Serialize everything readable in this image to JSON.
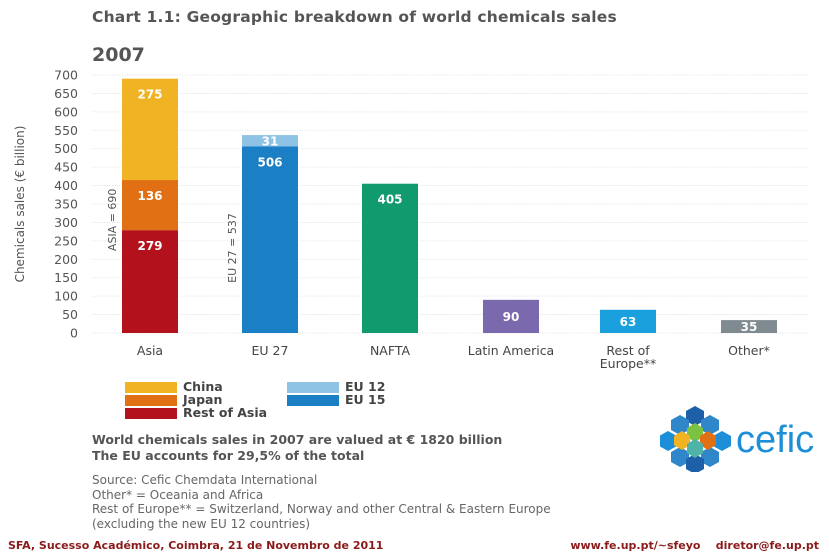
{
  "title": "Chart 1.1: Geographic breakdown of world chemicals sales",
  "year": "2007",
  "chart_data": {
    "type": "bar",
    "stacked": true,
    "ylabel": "Chemicals sales (€ billion)",
    "ylim": [
      0,
      700
    ],
    "yticks": [
      0,
      50,
      100,
      150,
      200,
      250,
      300,
      350,
      400,
      450,
      500,
      550,
      600,
      650,
      700
    ],
    "grid": true,
    "categories": [
      "Asia",
      "EU 27",
      "NAFTA",
      "Latin America",
      "Rest of Europe**",
      "Other*"
    ],
    "category_lines": [
      [
        "Asia"
      ],
      [
        "EU 27"
      ],
      [
        "NAFTA"
      ],
      [
        "Latin America"
      ],
      [
        "Rest of",
        "Europe**"
      ],
      [
        "Other*"
      ]
    ],
    "bars": [
      {
        "category": "Asia",
        "total_label": "ASIA = 690",
        "segments": [
          {
            "name": "Rest of Asia",
            "value": 279,
            "color": "#b3121d"
          },
          {
            "name": "Japan",
            "value": 136,
            "color": "#e07013"
          },
          {
            "name": "China",
            "value": 275,
            "color": "#f0b323"
          }
        ]
      },
      {
        "category": "EU 27",
        "total_label": "EU 27 = 537",
        "segments": [
          {
            "name": "EU 15",
            "value": 506,
            "color": "#1a7fc4"
          },
          {
            "name": "EU 12",
            "value": 31,
            "color": "#8fc3e6"
          }
        ]
      },
      {
        "category": "NAFTA",
        "segments": [
          {
            "value": 405,
            "color": "#109a6e"
          }
        ]
      },
      {
        "category": "Latin America",
        "segments": [
          {
            "value": 90,
            "color": "#7a69ad"
          }
        ]
      },
      {
        "category": "Rest of Europe**",
        "segments": [
          {
            "value": 63,
            "color": "#1aa0dc"
          }
        ]
      },
      {
        "category": "Other*",
        "segments": [
          {
            "value": 35,
            "color": "#7f8b91"
          }
        ]
      }
    ],
    "legend": {
      "left": [
        {
          "label": "China",
          "color": "#f0b323"
        },
        {
          "label": "Japan",
          "color": "#e07013"
        },
        {
          "label": "Rest of Asia",
          "color": "#b3121d"
        }
      ],
      "right": [
        {
          "label": "EU 12",
          "color": "#8fc3e6"
        },
        {
          "label": "EU 15",
          "color": "#1a7fc4"
        }
      ]
    }
  },
  "summary": {
    "line1": "World chemicals sales in 2007 are valued at € 1820 billion",
    "line2": "The EU accounts for 29,5% of the total"
  },
  "notes": {
    "source": "Source: Cefic Chemdata International",
    "other": "Other* = Oceania and Africa",
    "rest1": "Rest of Europe** = Switzerland, Norway and other Central & Eastern Europe",
    "rest2": "(excluding the new EU 12 countries)"
  },
  "logo": {
    "text": "cefic",
    "color": "#1d8fd8"
  },
  "footer": {
    "left": "SFA, Sucesso Académico, Coimbra, 21 de Novembro de 2011",
    "right": "www.fe.up.pt/~sfeyo    diretor@fe.up.pt"
  }
}
